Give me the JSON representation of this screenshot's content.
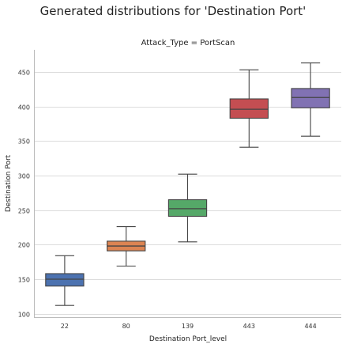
{
  "chart_data": {
    "type": "box",
    "title": "Generated distributions for 'Destination Port'",
    "subtitle": "Attack_Type = PortScan",
    "xlabel": "Destination Port_level",
    "ylabel": "Destination Port",
    "ylim": [
      95,
      482
    ],
    "yticks": [
      100,
      150,
      200,
      250,
      300,
      350,
      400,
      450
    ],
    "grid": true,
    "categories": [
      "22",
      "80",
      "139",
      "443",
      "444"
    ],
    "boxes": [
      {
        "category": "22",
        "whislo": 112,
        "q1": 140,
        "med": 150,
        "q3": 158,
        "whishi": 184,
        "color": "#4c72b0"
      },
      {
        "category": "80",
        "whislo": 169,
        "q1": 191,
        "med": 198,
        "q3": 205,
        "whishi": 226,
        "color": "#dd8452"
      },
      {
        "category": "139",
        "whislo": 204,
        "q1": 241,
        "med": 252,
        "q3": 265,
        "whishi": 302,
        "color": "#55a868"
      },
      {
        "category": "443",
        "whislo": 341,
        "q1": 383,
        "med": 396,
        "q3": 411,
        "whishi": 453,
        "color": "#c44e52"
      },
      {
        "category": "444",
        "whislo": 357,
        "q1": 398,
        "med": 413,
        "q3": 426,
        "whishi": 463,
        "color": "#8172b3"
      }
    ]
  }
}
